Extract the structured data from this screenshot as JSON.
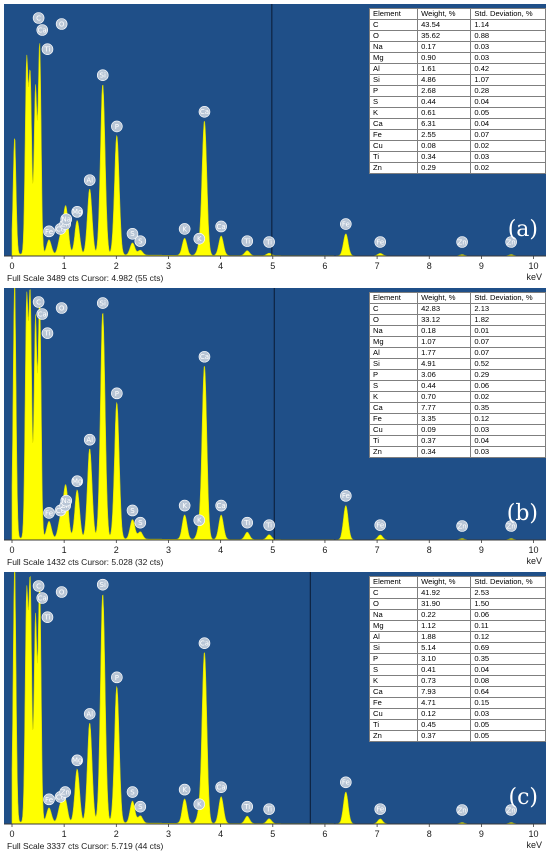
{
  "chart_data": [
    {
      "type": "area",
      "panel_label": "(a)",
      "xlabel": "keV",
      "xlim": [
        0,
        10.2
      ],
      "x_ticks": [
        "0",
        "1",
        "2",
        "3",
        "4",
        "5",
        "6",
        "7",
        "8",
        "9",
        "10"
      ],
      "status": "Full Scale 3489 cts Cursor: 4.982  (55 cts)",
      "cursor_kev": 4.982,
      "peaks": [
        {
          "x": 0.05,
          "h": 0.48,
          "label": ""
        },
        {
          "x": 0.28,
          "h": 0.78,
          "label": "C"
        },
        {
          "x": 0.35,
          "h": 0.72,
          "label": "Ca"
        },
        {
          "x": 0.45,
          "h": 0.68,
          "label": "Ti"
        },
        {
          "x": 0.53,
          "h": 0.86,
          "label": "O"
        },
        {
          "x": 0.71,
          "h": 0.06,
          "label": "Fe"
        },
        {
          "x": 0.93,
          "h": 0.07,
          "label": "Cu"
        },
        {
          "x": 1.02,
          "h": 0.09,
          "label": "Zn"
        },
        {
          "x": 1.04,
          "h": 0.11,
          "label": "Na"
        },
        {
          "x": 1.25,
          "h": 0.14,
          "label": "Mg"
        },
        {
          "x": 1.49,
          "h": 0.27,
          "label": "Al"
        },
        {
          "x": 1.74,
          "h": 0.7,
          "label": "Si"
        },
        {
          "x": 2.01,
          "h": 0.49,
          "label": "P"
        },
        {
          "x": 2.31,
          "h": 0.05,
          "label": "S"
        },
        {
          "x": 2.46,
          "h": 0.02,
          "label": "S"
        },
        {
          "x": 3.31,
          "h": 0.07,
          "label": "K"
        },
        {
          "x": 3.59,
          "h": 0.03,
          "label": "K"
        },
        {
          "x": 3.69,
          "h": 0.55,
          "label": "Ca"
        },
        {
          "x": 4.01,
          "h": 0.08,
          "label": "Ca"
        },
        {
          "x": 4.51,
          "h": 0.02,
          "label": "Ti"
        },
        {
          "x": 4.93,
          "h": 0.01,
          "label": "Ti"
        },
        {
          "x": 6.4,
          "h": 0.09,
          "label": "Fe"
        },
        {
          "x": 7.06,
          "h": 0.01,
          "label": "Fe"
        },
        {
          "x": 8.63,
          "h": 0.005,
          "label": "Zn"
        },
        {
          "x": 9.57,
          "h": 0.005,
          "label": "Zn"
        }
      ],
      "table": {
        "headers": [
          "Element",
          "Weight, %",
          "Std. Deviation, %"
        ],
        "rows": [
          [
            "C",
            "43.54",
            "1.14"
          ],
          [
            "O",
            "35.62",
            "0.88"
          ],
          [
            "Na",
            "0.17",
            "0.03"
          ],
          [
            "Mg",
            "0.90",
            "0.03"
          ],
          [
            "Al",
            "1.61",
            "0.42"
          ],
          [
            "Si",
            "4.86",
            "1.07"
          ],
          [
            "P",
            "2.68",
            "0.28"
          ],
          [
            "S",
            "0.44",
            "0.04"
          ],
          [
            "K",
            "0.61",
            "0.05"
          ],
          [
            "Ca",
            "6.31",
            "0.04"
          ],
          [
            "Fe",
            "2.55",
            "0.07"
          ],
          [
            "Cu",
            "0.08",
            "0.02"
          ],
          [
            "Ti",
            "0.34",
            "0.03"
          ],
          [
            "Zn",
            "0.29",
            "0.02"
          ]
        ]
      }
    },
    {
      "type": "area",
      "panel_label": "(b)",
      "xlabel": "keV",
      "xlim": [
        0,
        10.2
      ],
      "x_ticks": [
        "0",
        "1",
        "2",
        "3",
        "4",
        "5",
        "6",
        "7",
        "8",
        "9",
        "10"
      ],
      "status": "Full Scale 1432 cts Cursor: 5.028  (32 cts)",
      "cursor_kev": 5.028,
      "peaks": [
        {
          "x": 0.05,
          "h": 1.05,
          "label": ""
        },
        {
          "x": 0.28,
          "h": 0.96,
          "label": "C"
        },
        {
          "x": 0.35,
          "h": 0.98,
          "label": "Ca"
        },
        {
          "x": 0.45,
          "h": 0.9,
          "label": "Ti"
        },
        {
          "x": 0.53,
          "h": 0.98,
          "label": "O"
        },
        {
          "x": 0.71,
          "h": 0.07,
          "label": "Fe"
        },
        {
          "x": 0.93,
          "h": 0.08,
          "label": "Cu"
        },
        {
          "x": 1.02,
          "h": 0.1,
          "label": "Zn"
        },
        {
          "x": 1.04,
          "h": 0.12,
          "label": "Na"
        },
        {
          "x": 1.25,
          "h": 0.2,
          "label": "Mg"
        },
        {
          "x": 1.49,
          "h": 0.37,
          "label": "Al"
        },
        {
          "x": 1.74,
          "h": 0.93,
          "label": "Si"
        },
        {
          "x": 2.01,
          "h": 0.56,
          "label": "P"
        },
        {
          "x": 2.31,
          "h": 0.08,
          "label": "S"
        },
        {
          "x": 2.46,
          "h": 0.03,
          "label": "S"
        },
        {
          "x": 3.31,
          "h": 0.1,
          "label": "K"
        },
        {
          "x": 3.59,
          "h": 0.04,
          "label": "K"
        },
        {
          "x": 3.69,
          "h": 0.71,
          "label": "Ca"
        },
        {
          "x": 4.01,
          "h": 0.1,
          "label": "Ca"
        },
        {
          "x": 4.51,
          "h": 0.03,
          "label": "Ti"
        },
        {
          "x": 4.93,
          "h": 0.02,
          "label": "Ti"
        },
        {
          "x": 6.4,
          "h": 0.14,
          "label": "Fe"
        },
        {
          "x": 7.06,
          "h": 0.02,
          "label": "Fe"
        },
        {
          "x": 8.63,
          "h": 0.005,
          "label": "Zn"
        },
        {
          "x": 9.57,
          "h": 0.005,
          "label": "Zn"
        }
      ],
      "table": {
        "headers": [
          "Element",
          "Weight, %",
          "Std. Deviation, %"
        ],
        "rows": [
          [
            "C",
            "42.83",
            "2.13"
          ],
          [
            "O",
            "33.12",
            "1.82"
          ],
          [
            "Na",
            "0.18",
            "0.01"
          ],
          [
            "Mg",
            "1.07",
            "0.07"
          ],
          [
            "Al",
            "1.77",
            "0.07"
          ],
          [
            "Si",
            "4.91",
            "0.52"
          ],
          [
            "P",
            "3.06",
            "0.29"
          ],
          [
            "S",
            "0.44",
            "0.06"
          ],
          [
            "K",
            "0.70",
            "0.02"
          ],
          [
            "Ca",
            "7.77",
            "0.35"
          ],
          [
            "Fe",
            "3.35",
            "0.12"
          ],
          [
            "Cu",
            "0.09",
            "0.03"
          ],
          [
            "Ti",
            "0.37",
            "0.04"
          ],
          [
            "Zn",
            "0.34",
            "0.03"
          ]
        ]
      }
    },
    {
      "type": "area",
      "panel_label": "(c)",
      "xlabel": "keV",
      "xlim": [
        0,
        10.2
      ],
      "x_ticks": [
        "0",
        "1",
        "2",
        "3",
        "4",
        "5",
        "6",
        "7",
        "8",
        "9",
        "10"
      ],
      "status": "Full Scale 3337 cts Cursor: 5.719  (44 cts)",
      "cursor_kev": 5.719,
      "peaks": [
        {
          "x": 0.05,
          "h": 1.05,
          "label": ""
        },
        {
          "x": 0.28,
          "h": 0.92,
          "label": "C"
        },
        {
          "x": 0.35,
          "h": 0.97,
          "label": "Ca"
        },
        {
          "x": 0.45,
          "h": 0.84,
          "label": "Ti"
        },
        {
          "x": 0.53,
          "h": 0.98,
          "label": "O"
        },
        {
          "x": 0.71,
          "h": 0.06,
          "label": "Fe"
        },
        {
          "x": 0.93,
          "h": 0.07,
          "label": "Cu"
        },
        {
          "x": 1.02,
          "h": 0.09,
          "label": "Zn"
        },
        {
          "x": 1.25,
          "h": 0.22,
          "label": "Mg"
        },
        {
          "x": 1.49,
          "h": 0.41,
          "label": "Al"
        },
        {
          "x": 1.74,
          "h": 0.94,
          "label": "Si"
        },
        {
          "x": 2.01,
          "h": 0.56,
          "label": "P"
        },
        {
          "x": 2.31,
          "h": 0.09,
          "label": "S"
        },
        {
          "x": 2.46,
          "h": 0.03,
          "label": "S"
        },
        {
          "x": 3.31,
          "h": 0.1,
          "label": "K"
        },
        {
          "x": 3.59,
          "h": 0.04,
          "label": "K"
        },
        {
          "x": 3.69,
          "h": 0.7,
          "label": "Ca"
        },
        {
          "x": 4.01,
          "h": 0.11,
          "label": "Ca"
        },
        {
          "x": 4.51,
          "h": 0.03,
          "label": "Ti"
        },
        {
          "x": 4.93,
          "h": 0.02,
          "label": "Ti"
        },
        {
          "x": 6.4,
          "h": 0.13,
          "label": "Fe"
        },
        {
          "x": 7.06,
          "h": 0.02,
          "label": "Fe"
        },
        {
          "x": 8.63,
          "h": 0.005,
          "label": "Zn"
        },
        {
          "x": 9.57,
          "h": 0.005,
          "label": "Zn"
        }
      ],
      "table": {
        "headers": [
          "Element",
          "Weight, %",
          "Std. Deviation, %"
        ],
        "rows": [
          [
            "C",
            "41.92",
            "2.53"
          ],
          [
            "O",
            "31.90",
            "1.50"
          ],
          [
            "Na",
            "0.22",
            "0.06"
          ],
          [
            "Mg",
            "1.12",
            "0.11"
          ],
          [
            "Al",
            "1.88",
            "0.12"
          ],
          [
            "Si",
            "5.14",
            "0.69"
          ],
          [
            "P",
            "3.10",
            "0.35"
          ],
          [
            "S",
            "0.41",
            "0.04"
          ],
          [
            "K",
            "0.73",
            "0.08"
          ],
          [
            "Ca",
            "7.93",
            "0.64"
          ],
          [
            "Fe",
            "4.71",
            "0.15"
          ],
          [
            "Cu",
            "0.12",
            "0.03"
          ],
          [
            "Ti",
            "0.45",
            "0.05"
          ],
          [
            "Zn",
            "0.37",
            "0.05"
          ]
        ]
      }
    }
  ],
  "colors": {
    "plot_background": "#1f4f88",
    "spectrum_fill": "#ffff00",
    "spectrum_edge": "#d8d800",
    "label_bubble": "#b9c6d6",
    "cursor_line": "#0a1a33"
  }
}
